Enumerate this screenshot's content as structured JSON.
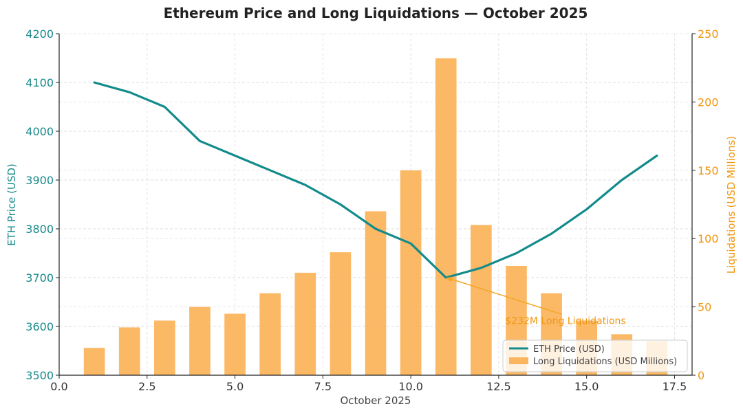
{
  "chart_data": {
    "type": "bar+line",
    "title": "Ethereum Price and Long Liquidations — October 2025",
    "xlabel": "October 2025",
    "ylabel_left": "ETH Price (USD)",
    "ylabel_right": "Liquidations (USD Millions)",
    "xlim": [
      0,
      18
    ],
    "ylim_left": [
      3500,
      4200
    ],
    "ylim_right": [
      0,
      250
    ],
    "x_ticks": [
      0.0,
      2.5,
      5.0,
      7.5,
      10.0,
      12.5,
      15.0,
      17.5
    ],
    "x_tick_labels": [
      "0.0",
      "2.5",
      "5.0",
      "7.5",
      "10.0",
      "12.5",
      "15.0",
      "17.5"
    ],
    "y_left_ticks": [
      3500,
      3600,
      3700,
      3800,
      3900,
      4000,
      4100,
      4200
    ],
    "y_left_tick_labels": [
      "3500",
      "3600",
      "3700",
      "3800",
      "3900",
      "4000",
      "4100",
      "4200"
    ],
    "y_right_ticks": [
      0,
      50,
      100,
      150,
      200,
      250
    ],
    "y_right_tick_labels": [
      "0",
      "50",
      "100",
      "150",
      "200",
      "250"
    ],
    "x": [
      1,
      2,
      3,
      4,
      5,
      6,
      7,
      8,
      9,
      10,
      11,
      12,
      13,
      14,
      15,
      16,
      17
    ],
    "series": [
      {
        "name": "ETH Price (USD)",
        "type": "line",
        "axis": "left",
        "color": "#138b8b",
        "values": [
          4100,
          4080,
          4050,
          3980,
          3950,
          3920,
          3890,
          3850,
          3800,
          3770,
          3700,
          3720,
          3750,
          3790,
          3840,
          3900,
          3950
        ]
      },
      {
        "name": "Long Liquidations (USD Millions)",
        "type": "bar",
        "axis": "right",
        "color": "#fbb55e",
        "values": [
          20,
          35,
          40,
          50,
          45,
          60,
          75,
          90,
          120,
          150,
          232,
          110,
          80,
          60,
          40,
          30,
          25
        ]
      }
    ],
    "annotation": {
      "text": "$232M Long Liquidations",
      "point_x": 11,
      "point_y": 3700,
      "text_x": 14.4,
      "text_y": 3605,
      "color": "#f5a623"
    },
    "grid": true,
    "legend_position": "lower-right"
  }
}
